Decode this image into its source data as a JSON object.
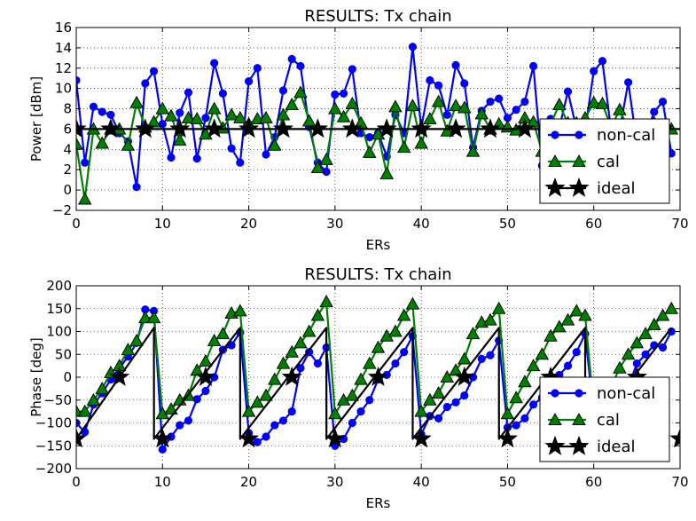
{
  "colors": {
    "non_cal": "#0000ff",
    "cal": "#008000",
    "ideal": "#000000"
  },
  "chart_data": [
    {
      "type": "line",
      "title": "RESULTS: Tx chain",
      "xlabel": "ERs",
      "ylabel": "Power [dBm]",
      "xlim": [
        0,
        70
      ],
      "ylim": [
        -2,
        16
      ],
      "xticks": [
        "0",
        "10",
        "20",
        "30",
        "40",
        "50",
        "60",
        "70"
      ],
      "yticks": [
        "−2",
        "0",
        "2",
        "4",
        "6",
        "8",
        "10",
        "12",
        "14",
        "16"
      ],
      "grid": true,
      "legend": "lower-right",
      "series": [
        {
          "name": "non-cal",
          "marker": "circle",
          "x": [
            0,
            1,
            2,
            3,
            4,
            5,
            6,
            7,
            8,
            9,
            10,
            11,
            12,
            13,
            14,
            15,
            16,
            17,
            18,
            19,
            20,
            21,
            22,
            23,
            24,
            25,
            26,
            27,
            28,
            29,
            30,
            31,
            32,
            33,
            34,
            35,
            36,
            37,
            38,
            39,
            40,
            41,
            42,
            43,
            44,
            45,
            46,
            47,
            48,
            49,
            50,
            51,
            52,
            53,
            54,
            55,
            56,
            57,
            58,
            59,
            60,
            61,
            62,
            63,
            64,
            65,
            66,
            67,
            68,
            69
          ],
          "values": [
            10.8,
            2.7,
            8.2,
            7.7,
            7.4,
            5.6,
            4.8,
            0.3,
            10.5,
            11.7,
            6.5,
            3.2,
            7.6,
            9.6,
            3.1,
            7.1,
            12.5,
            9.5,
            4.1,
            2.7,
            10.7,
            12.0,
            3.5,
            5.2,
            9.8,
            12.9,
            12.2,
            6.2,
            2.7,
            1.8,
            9.4,
            9.5,
            11.9,
            5.6,
            5.2,
            5.6,
            3.3,
            7.4,
            5.6,
            14.1,
            6.1,
            10.8,
            10.3,
            7.4,
            12.3,
            10.5,
            4.2,
            7.8,
            8.7,
            9.0,
            7.1,
            7.9,
            8.7,
            12.2,
            2.4,
            7.0,
            6.1,
            9.7,
            6.0,
            5.9,
            11.7,
            12.7,
            5.9,
            5.9,
            10.6,
            4.5,
            5.2,
            7.7,
            8.7,
            3.6
          ]
        },
        {
          "name": "cal",
          "marker": "triangle",
          "x": [
            0,
            1,
            2,
            3,
            4,
            5,
            6,
            7,
            8,
            9,
            10,
            11,
            12,
            13,
            14,
            15,
            16,
            17,
            18,
            19,
            20,
            21,
            22,
            23,
            24,
            25,
            26,
            27,
            28,
            29,
            30,
            31,
            32,
            33,
            34,
            35,
            36,
            37,
            38,
            39,
            40,
            41,
            42,
            43,
            44,
            45,
            46,
            47,
            48,
            49,
            50,
            51,
            52,
            53,
            54,
            55,
            56,
            57,
            58,
            59,
            60,
            61,
            62,
            63,
            64,
            65,
            66,
            67,
            68,
            69
          ],
          "values": [
            4.5,
            -0.9,
            6.0,
            4.6,
            6.0,
            6.0,
            4.4,
            8.6,
            6.2,
            6.7,
            8.0,
            7.3,
            4.9,
            7.1,
            7.0,
            5.5,
            8.0,
            6.1,
            7.4,
            7.1,
            6.5,
            7.0,
            7.1,
            4.4,
            7.4,
            8.4,
            9.6,
            6.8,
            2.2,
            3.0,
            8.0,
            7.2,
            8.5,
            6.6,
            3.7,
            5.5,
            1.6,
            8.2,
            4.2,
            8.3,
            4.6,
            7.0,
            8.7,
            5.8,
            8.3,
            8.1,
            3.8,
            7.5,
            6.0,
            6.5,
            6.2,
            5.9,
            7.1,
            6.7,
            3.8,
            6.5,
            8.4,
            6.6,
            6.6,
            7.1,
            8.6,
            8.5,
            6.2,
            7.9,
            6.0,
            5.9,
            6.0,
            6.6,
            5.7,
            6.0
          ]
        },
        {
          "name": "ideal",
          "marker": "star",
          "x": [
            0,
            4,
            8,
            12,
            16,
            20,
            24,
            28,
            32,
            36,
            40,
            44,
            48,
            52,
            56,
            60,
            64,
            68
          ],
          "values": [
            6,
            6,
            6,
            6,
            6,
            6,
            6,
            6,
            6,
            6,
            6,
            6,
            6,
            6,
            6,
            6,
            6,
            6
          ],
          "line_x": [
            0,
            70
          ],
          "line_values": [
            6,
            6
          ]
        }
      ]
    },
    {
      "type": "line",
      "title": "RESULTS: Tx chain",
      "xlabel": "ERs",
      "ylabel": "Phase [deg]",
      "xlim": [
        0,
        70
      ],
      "ylim": [
        -200,
        200
      ],
      "xticks": [
        "0",
        "10",
        "20",
        "30",
        "40",
        "50",
        "60",
        "70"
      ],
      "yticks": [
        "−200",
        "−150",
        "−100",
        "−50",
        "0",
        "50",
        "100",
        "150",
        "200"
      ],
      "grid": true,
      "legend": "lower-right",
      "series": [
        {
          "name": "non-cal",
          "marker": "circle",
          "x": [
            0,
            1,
            2,
            3,
            4,
            5,
            6,
            7,
            8,
            9,
            10,
            11,
            12,
            13,
            14,
            15,
            16,
            17,
            18,
            19,
            20,
            21,
            22,
            23,
            24,
            25,
            26,
            27,
            28,
            29,
            30,
            31,
            32,
            33,
            34,
            35,
            36,
            37,
            38,
            39,
            40,
            41,
            42,
            43,
            44,
            45,
            46,
            47,
            48,
            49,
            50,
            51,
            52,
            53,
            54,
            55,
            56,
            57,
            58,
            59,
            60,
            61,
            62,
            63,
            64,
            65,
            66,
            67,
            68,
            69
          ],
          "values": [
            -100,
            -120,
            -60,
            -35,
            -5,
            20,
            45,
            75,
            148,
            145,
            -158,
            -130,
            -105,
            -95,
            -48,
            -30,
            0,
            60,
            70,
            98,
            -122,
            -142,
            -130,
            -105,
            -95,
            -75,
            20,
            55,
            30,
            65,
            -150,
            -135,
            -100,
            -75,
            -50,
            -5,
            5,
            30,
            55,
            90,
            -125,
            -85,
            -90,
            -65,
            -55,
            -40,
            0,
            40,
            48,
            80,
            -110,
            -105,
            -90,
            -60,
            -45,
            -25,
            5,
            25,
            55,
            95,
            -80,
            -75,
            -60,
            -40,
            -20,
            30,
            50,
            70,
            65,
            100
          ]
        },
        {
          "name": "cal",
          "marker": "triangle",
          "x": [
            0,
            1,
            2,
            3,
            4,
            5,
            6,
            7,
            8,
            9,
            10,
            11,
            12,
            13,
            14,
            15,
            16,
            17,
            18,
            19,
            20,
            21,
            22,
            23,
            24,
            25,
            26,
            27,
            28,
            29,
            30,
            31,
            32,
            33,
            34,
            35,
            36,
            37,
            38,
            39,
            40,
            41,
            42,
            43,
            44,
            45,
            46,
            47,
            48,
            49,
            50,
            51,
            52,
            53,
            54,
            55,
            56,
            57,
            58,
            59,
            60,
            61,
            62,
            63,
            64,
            65,
            66,
            67,
            68,
            69
          ],
          "values": [
            -75,
            -75,
            -50,
            -25,
            10,
            25,
            60,
            80,
            130,
            130,
            -80,
            -70,
            -50,
            -40,
            15,
            35,
            80,
            95,
            140,
            145,
            -75,
            -55,
            -40,
            -5,
            30,
            55,
            75,
            100,
            135,
            165,
            -80,
            -50,
            -40,
            -5,
            30,
            65,
            90,
            100,
            135,
            160,
            -75,
            -50,
            -35,
            0,
            15,
            40,
            95,
            120,
            125,
            150,
            -80,
            -45,
            -10,
            25,
            50,
            90,
            110,
            125,
            145,
            135,
            -70,
            -35,
            -20,
            20,
            50,
            75,
            95,
            115,
            135,
            150
          ]
        },
        {
          "name": "ideal",
          "marker": "star",
          "x": [
            0,
            5,
            10,
            15,
            20,
            25,
            30,
            35,
            40,
            45,
            50,
            55,
            60,
            65,
            70
          ],
          "values": [
            -135,
            0,
            -135,
            0,
            -135,
            0,
            -135,
            0,
            -135,
            0,
            -135,
            0,
            -135,
            0,
            -135
          ],
          "line_x": [
            0,
            9,
            9.01,
            19,
            19.01,
            29,
            29.01,
            39,
            39.01,
            49,
            49.01,
            59,
            59.01,
            69
          ],
          "line_values": [
            -135,
            108,
            -135,
            108,
            -135,
            108,
            -135,
            108,
            -135,
            108,
            -135,
            108,
            -135,
            108
          ]
        }
      ]
    }
  ]
}
